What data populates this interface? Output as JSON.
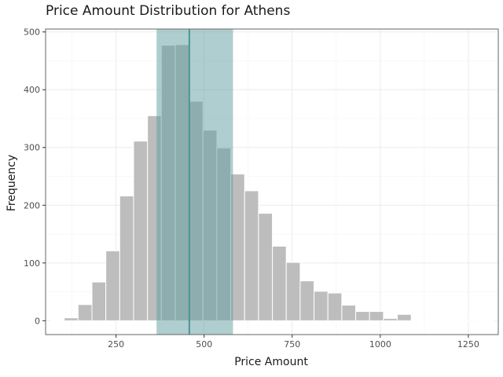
{
  "chart_data": {
    "type": "bar",
    "title": "Price Amount Distribution for Athens",
    "xlabel": "Price Amount",
    "ylabel": "Frequency",
    "xlim": [
      50,
      1335
    ],
    "ylim": [
      -24,
      505
    ],
    "xticks": [
      250,
      500,
      750,
      1000,
      1250
    ],
    "yticks": [
      0,
      100,
      200,
      300,
      400,
      500
    ],
    "grid": true,
    "bin_width": 39.4,
    "bins": [
      {
        "x0": 63.4,
        "value": 0
      },
      {
        "x0": 102.8,
        "value": 5
      },
      {
        "x0": 142.2,
        "value": 28
      },
      {
        "x0": 181.6,
        "value": 67
      },
      {
        "x0": 221.0,
        "value": 121
      },
      {
        "x0": 260.4,
        "value": 216
      },
      {
        "x0": 299.8,
        "value": 311
      },
      {
        "x0": 339.2,
        "value": 355
      },
      {
        "x0": 378.6,
        "value": 477
      },
      {
        "x0": 418.0,
        "value": 478
      },
      {
        "x0": 457.4,
        "value": 380
      },
      {
        "x0": 496.8,
        "value": 330
      },
      {
        "x0": 536.2,
        "value": 299
      },
      {
        "x0": 575.6,
        "value": 254
      },
      {
        "x0": 615.0,
        "value": 225
      },
      {
        "x0": 654.4,
        "value": 186
      },
      {
        "x0": 693.8,
        "value": 129
      },
      {
        "x0": 733.2,
        "value": 101
      },
      {
        "x0": 772.6,
        "value": 69
      },
      {
        "x0": 812.0,
        "value": 51
      },
      {
        "x0": 851.4,
        "value": 48
      },
      {
        "x0": 890.8,
        "value": 27
      },
      {
        "x0": 930.2,
        "value": 16
      },
      {
        "x0": 969.6,
        "value": 16
      },
      {
        "x0": 1009.0,
        "value": 4
      },
      {
        "x0": 1048.4,
        "value": 11
      },
      {
        "x0": 1087.8,
        "value": 1
      },
      {
        "x0": 1127.2,
        "value": 0
      },
      {
        "x0": 1166.6,
        "value": 0
      },
      {
        "x0": 1206.0,
        "value": 0
      },
      {
        "x0": 1245.4,
        "value": 1
      },
      {
        "x0": 1284.8,
        "value": 0
      }
    ],
    "highlight_band": {
      "x0": 365,
      "x1": 582
    },
    "vline": 458,
    "colors": {
      "bar": "#bdbdbd",
      "band": "#5f9ea0",
      "vline": "#4a9794",
      "grid": "#ebebeb",
      "border": "#666666"
    }
  }
}
